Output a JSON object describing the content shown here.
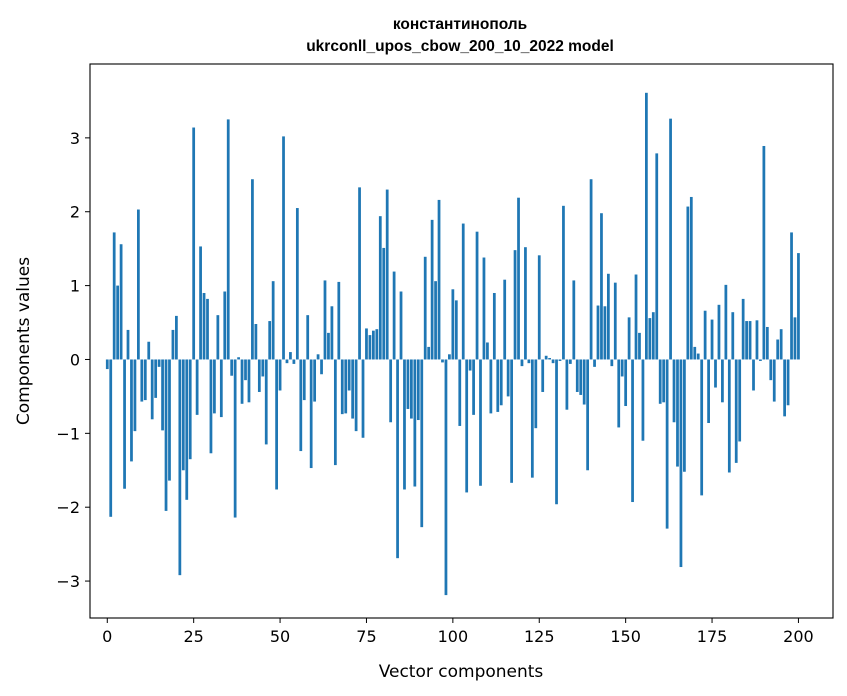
{
  "chart_data": {
    "type": "bar",
    "title": "константинополь",
    "subtitle": "ukrconll_upos_cbow_200_10_2022 model",
    "xlabel": "Vector components",
    "ylabel": "Components values",
    "xlim": [
      -5,
      210
    ],
    "ylim": [
      -3.5,
      4.0
    ],
    "x_ticks": [
      0,
      25,
      50,
      75,
      100,
      125,
      150,
      175,
      200
    ],
    "x_tick_labels": [
      "0",
      "25",
      "50",
      "75",
      "100",
      "125",
      "150",
      "175",
      "200"
    ],
    "y_ticks": [
      -3,
      -2,
      -1,
      0,
      1,
      2,
      3
    ],
    "y_tick_labels": [
      "−3",
      "−2",
      "−1",
      "0",
      "1",
      "2",
      "3"
    ],
    "grid": false,
    "legend": "none",
    "bar_color": "#1f77b4",
    "series": [
      {
        "values": [
          -0.13,
          -2.13,
          1.72,
          1.0,
          1.56,
          -1.75,
          0.4,
          -1.38,
          -0.97,
          2.03,
          -0.57,
          -0.55,
          0.24,
          -0.81,
          -0.52,
          -0.1,
          -0.96,
          -2.05,
          -1.64,
          0.4,
          0.59,
          -2.92,
          -1.5,
          -1.9,
          -1.35,
          3.14,
          -0.75,
          1.53,
          0.9,
          0.82,
          -1.27,
          -0.73,
          0.6,
          -0.78,
          0.92,
          3.25,
          -0.22,
          -2.14,
          0.03,
          -0.6,
          -0.28,
          -0.58,
          2.44,
          0.48,
          -0.44,
          -0.23,
          -1.15,
          0.52,
          1.06,
          -1.76,
          -0.42,
          3.02,
          -0.05,
          0.1,
          -0.06,
          2.05,
          -1.24,
          -0.55,
          0.6,
          -1.47,
          -0.57,
          0.07,
          -0.2,
          1.07,
          0.36,
          0.72,
          -1.43,
          1.05,
          -0.74,
          -0.73,
          -0.42,
          -0.8,
          -0.97,
          2.33,
          -1.06,
          0.42,
          0.33,
          0.39,
          0.41,
          1.94,
          1.51,
          2.3,
          -0.85,
          1.19,
          -2.69,
          0.92,
          -1.76,
          -0.67,
          -0.8,
          -1.72,
          -0.82,
          -2.27,
          1.39,
          0.17,
          1.89,
          1.06,
          2.16,
          -0.04,
          -3.19,
          0.07,
          0.95,
          0.8,
          -0.9,
          1.84,
          -1.8,
          -0.15,
          -0.75,
          1.73,
          -1.71,
          1.38,
          0.23,
          -0.73,
          0.9,
          -0.71,
          -0.62,
          1.08,
          -0.5,
          -1.67,
          1.48,
          2.19,
          -0.09,
          1.52,
          -0.05,
          -1.6,
          -0.93,
          1.41,
          -0.44,
          0.05,
          0.02,
          -0.05,
          -1.96,
          -0.02,
          2.08,
          -0.68,
          -0.06,
          1.07,
          -0.44,
          -0.48,
          -0.61,
          -1.5,
          2.44,
          -0.1,
          0.73,
          1.98,
          0.72,
          1.16,
          -0.09,
          1.04,
          -0.92,
          -0.23,
          -0.63,
          0.57,
          -1.93,
          1.15,
          0.36,
          -1.1,
          3.61,
          0.56,
          0.64,
          2.79,
          -0.6,
          -0.58,
          -2.29,
          3.26,
          -0.85,
          -1.45,
          -2.81,
          -1.52,
          2.07,
          2.2,
          0.17,
          0.08,
          -1.84,
          0.66,
          -0.86,
          0.54,
          -0.38,
          0.74,
          -0.58,
          1.01,
          -1.53,
          0.64,
          -1.4,
          -1.11,
          0.82,
          0.52,
          0.52,
          -0.42,
          0.53,
          -0.02,
          2.89,
          0.44,
          -0.28,
          -0.57,
          0.27,
          0.41,
          -0.77,
          -0.62,
          1.72,
          0.57,
          1.44
        ]
      }
    ]
  }
}
